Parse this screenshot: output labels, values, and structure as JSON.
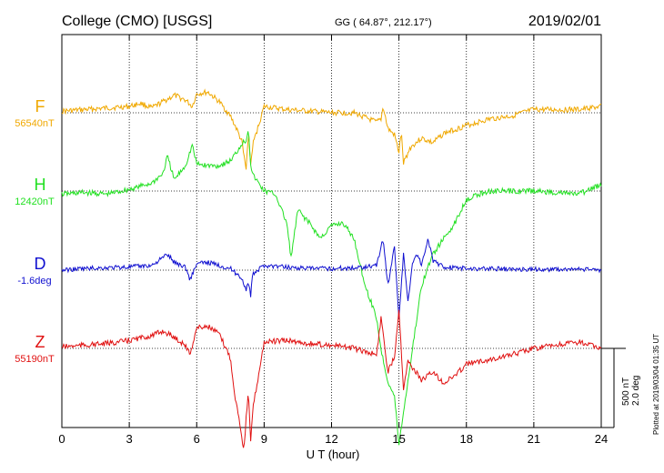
{
  "header": {
    "station": "College (CMO)  [USGS]",
    "coords": "GG ( 64.87°, 212.17°)",
    "date": "2019/02/01"
  },
  "footer": {
    "plotted": "Plotted at 2019/03/04 01:35 UT",
    "scale_nt": "500 nT",
    "scale_deg": "2.0 deg"
  },
  "chart_data": {
    "type": "line",
    "xlabel": "U T (hour)",
    "xlim": [
      0,
      24
    ],
    "x_ticks": [
      "0",
      "3",
      "6",
      "9",
      "12",
      "15",
      "18",
      "21",
      "24"
    ],
    "grid": true,
    "scale_bar": "500 nT / 2.0 deg",
    "series": [
      {
        "name": "F",
        "baseline_label": "56540nT",
        "color": "#f0a800",
        "x": [
          0,
          1,
          2,
          3,
          3.5,
          4,
          4.5,
          5,
          5.5,
          5.8,
          6,
          6.5,
          7,
          7.5,
          7.8,
          8,
          8.2,
          8.3,
          8.4,
          8.5,
          9,
          10,
          11,
          12,
          13,
          14,
          14.2,
          14.3,
          14.5,
          14.8,
          15,
          15.1,
          15.2,
          15.5,
          16,
          16.5,
          17,
          18,
          19,
          20,
          21,
          22,
          23,
          24
        ],
        "y": [
          10,
          20,
          30,
          40,
          60,
          30,
          70,
          110,
          80,
          40,
          120,
          130,
          70,
          -20,
          -110,
          -180,
          -360,
          -120,
          -330,
          -200,
          40,
          20,
          10,
          0,
          0,
          -60,
          -40,
          40,
          -100,
          -140,
          -250,
          -120,
          -320,
          -220,
          -160,
          -190,
          -130,
          -80,
          -40,
          -20,
          20,
          20,
          20,
          40
        ]
      },
      {
        "name": "H",
        "baseline_label": "12420nT",
        "color": "#22e022",
        "x": [
          0,
          1,
          2,
          3,
          3.5,
          4,
          4.5,
          4.7,
          5,
          5.5,
          5.8,
          6,
          6.5,
          7,
          7.5,
          7.8,
          8,
          8.2,
          8.3,
          8.4,
          8.5,
          9,
          9.5,
          10,
          10.2,
          10.5,
          11,
          11.5,
          12,
          12.5,
          13,
          13.5,
          14,
          14.2,
          14.5,
          14.8,
          15,
          15.2,
          15.5,
          16,
          16.5,
          17,
          17.5,
          18,
          19,
          20,
          21,
          22,
          23,
          24
        ],
        "y": [
          -20,
          -10,
          -20,
          10,
          30,
          50,
          110,
          220,
          70,
          160,
          290,
          170,
          160,
          160,
          190,
          250,
          300,
          320,
          400,
          170,
          100,
          0,
          -20,
          -200,
          -420,
          -120,
          -200,
          -300,
          -220,
          -200,
          -300,
          -600,
          -800,
          -1000,
          -1200,
          -1300,
          -1600,
          -1400,
          -1100,
          -600,
          -400,
          -300,
          -200,
          -50,
          0,
          0,
          0,
          -10,
          -20,
          40
        ]
      },
      {
        "name": "D",
        "baseline_label": "-1.6deg",
        "color": "#1010d0",
        "x": [
          0,
          1,
          2,
          3,
          4,
          4.7,
          5,
          5.5,
          5.7,
          6,
          6.5,
          7,
          7.5,
          8,
          8.2,
          8.3,
          8.4,
          8.5,
          9,
          10,
          11,
          12,
          13,
          14,
          14.3,
          14.5,
          14.8,
          15,
          15.2,
          15.4,
          15.6,
          15.8,
          16,
          16.3,
          16.5,
          17,
          18,
          19,
          20,
          21,
          22,
          23,
          24
        ],
        "y": [
          0,
          0.04,
          0.06,
          0.08,
          0.12,
          0.4,
          0.2,
          0.08,
          -0.24,
          0.16,
          0.2,
          0.12,
          0.04,
          -0.2,
          -0.48,
          -0.32,
          -0.64,
          -0.1,
          0.12,
          0.08,
          0.04,
          0.04,
          0.06,
          0.12,
          0.8,
          -0.4,
          0.6,
          -1.2,
          0.4,
          -0.8,
          0.2,
          0.4,
          0.16,
          0.8,
          0.24,
          0.08,
          0.04,
          0.04,
          0.02,
          0.02,
          0.02,
          0.02,
          0
        ]
      },
      {
        "name": "Z",
        "baseline_label": "55190nT",
        "color": "#e01010",
        "x": [
          0,
          1,
          2,
          3,
          4,
          4.5,
          5,
          5.5,
          5.7,
          6,
          6.5,
          7,
          7.5,
          7.7,
          7.9,
          8.1,
          8.2,
          8.3,
          8.4,
          8.5,
          9,
          10,
          11,
          12,
          13,
          13.5,
          14,
          14.2,
          14.3,
          14.5,
          14.8,
          15,
          15.2,
          15.4,
          15.6,
          16,
          16.5,
          17,
          17.5,
          18,
          19,
          20,
          21,
          22,
          23,
          24
        ],
        "y": [
          10,
          20,
          30,
          50,
          80,
          110,
          70,
          20,
          -40,
          130,
          140,
          90,
          -60,
          -300,
          -450,
          -650,
          -440,
          -280,
          -600,
          -380,
          40,
          50,
          30,
          20,
          0,
          -20,
          -40,
          190,
          100,
          -150,
          -50,
          250,
          -250,
          -80,
          -120,
          -200,
          -150,
          -220,
          -170,
          -100,
          -70,
          -40,
          0,
          20,
          40,
          0
        ]
      }
    ]
  }
}
